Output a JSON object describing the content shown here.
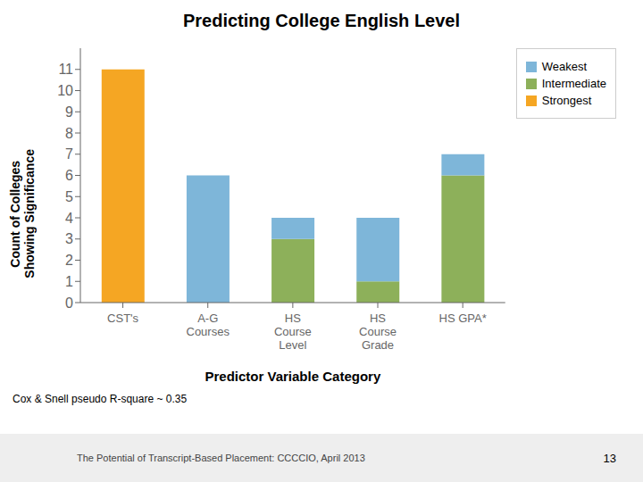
{
  "chart_data": {
    "type": "bar",
    "title": "Predicting College English Level",
    "x_label": "Predictor Variable Category",
    "y_label": "Count of Colleges\nShowing Significance",
    "categories": [
      "CST's",
      "A-G\nCourses",
      "HS\nCourse\nLevel",
      "HS\nCourse\nGrade",
      "HS GPA*"
    ],
    "series": [
      {
        "name": "Strongest",
        "color": "#F5A623",
        "values": [
          11,
          0,
          0,
          0,
          0
        ]
      },
      {
        "name": "Intermediate",
        "color": "#8DB05A",
        "values": [
          0,
          0,
          3,
          1,
          6
        ]
      },
      {
        "name": "Weakest",
        "color": "#7EB6D9",
        "values": [
          0,
          6,
          1,
          3,
          1
        ]
      }
    ],
    "stacked": true,
    "ylim": [
      0,
      12
    ],
    "yticks": [
      0,
      1,
      2,
      3,
      4,
      5,
      6,
      7,
      8,
      9,
      10,
      11
    ],
    "grid": false,
    "legend": "upper right",
    "annotations": [
      "Cox & Snell pseudo R-square ~ 0.35",
      "The Potential of Transcript-Based Placement: CCCCIO, April 2013",
      "13"
    ]
  }
}
